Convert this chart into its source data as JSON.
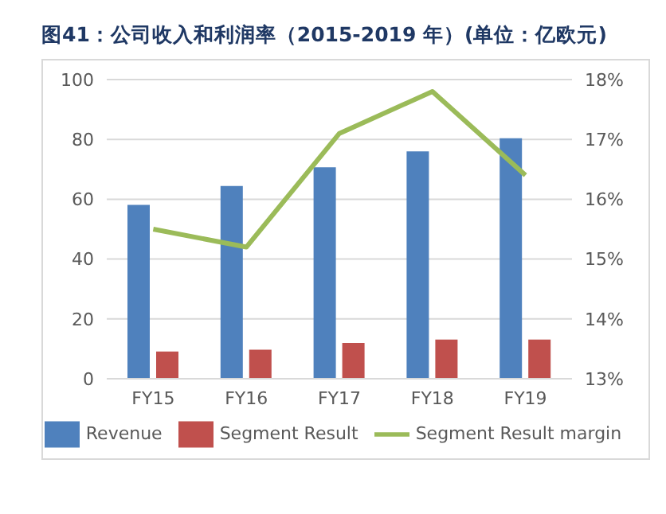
{
  "chart_data": {
    "type": "bar",
    "title": "图41：公司收入和利润率（2015-2019 年）(单位：亿欧元)",
    "categories": [
      "FY15",
      "FY16",
      "FY17",
      "FY18",
      "FY19"
    ],
    "series": [
      {
        "name": "Revenue",
        "color": "#4f81bd",
        "values": [
          58.1,
          64.4,
          70.7,
          76,
          80.4
        ]
      },
      {
        "name": "Segment Result",
        "color": "#c0504d",
        "values": [
          9.1,
          9.7,
          12,
          13.1,
          13.1
        ]
      },
      {
        "name": "Segment Result margin",
        "type": "line",
        "axis": "y2",
        "color": "#9bbb59",
        "values": [
          15.5,
          15.2,
          17.1,
          17.8,
          16.4
        ]
      }
    ],
    "ylim": [
      0,
      100
    ],
    "yticks": [
      0,
      20,
      40,
      60,
      80,
      100
    ],
    "y2lim": [
      13,
      18
    ],
    "y2ticks": [
      {
        "value": 13,
        "label": "13%"
      },
      {
        "value": 14,
        "label": "14%"
      },
      {
        "value": 15,
        "label": "15%"
      },
      {
        "value": 16,
        "label": "16%"
      },
      {
        "value": 17,
        "label": "17%"
      },
      {
        "value": 18,
        "label": "18%"
      }
    ],
    "grid": "y",
    "legend": "bottom",
    "marker": "none"
  }
}
